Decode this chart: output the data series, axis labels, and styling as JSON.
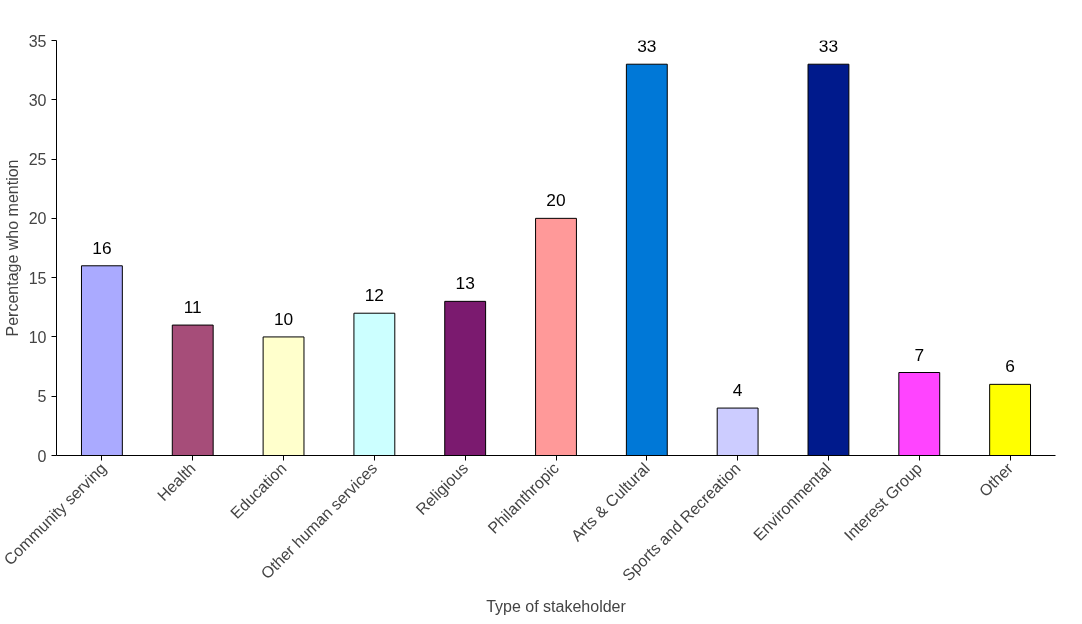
{
  "chart_data": {
    "type": "bar",
    "xlabel": "Type of stakeholder",
    "ylabel": "Percentage who mention",
    "categories": [
      "Community serving",
      "Health",
      "Education",
      "Other human services",
      "Religious",
      "Philanthropic",
      "Arts & Cultural",
      "Sports and Recreation",
      "Environmental",
      "Interest Group",
      "Other"
    ],
    "values": [
      16,
      11,
      10,
      12,
      13,
      20,
      33,
      4,
      33,
      7,
      6
    ],
    "colors": [
      "#aaaaff",
      "#a64d79",
      "#ffffcc",
      "#ccffff",
      "#7b1a6f",
      "#ff9999",
      "#0078d7",
      "#ccccff",
      "#001a8c",
      "#ff44ff",
      "#ffff00"
    ],
    "ylim": [
      0,
      35
    ],
    "yticks": [
      0,
      5,
      10,
      15,
      20,
      25,
      30,
      35
    ],
    "grid": false,
    "data_labels": true
  }
}
